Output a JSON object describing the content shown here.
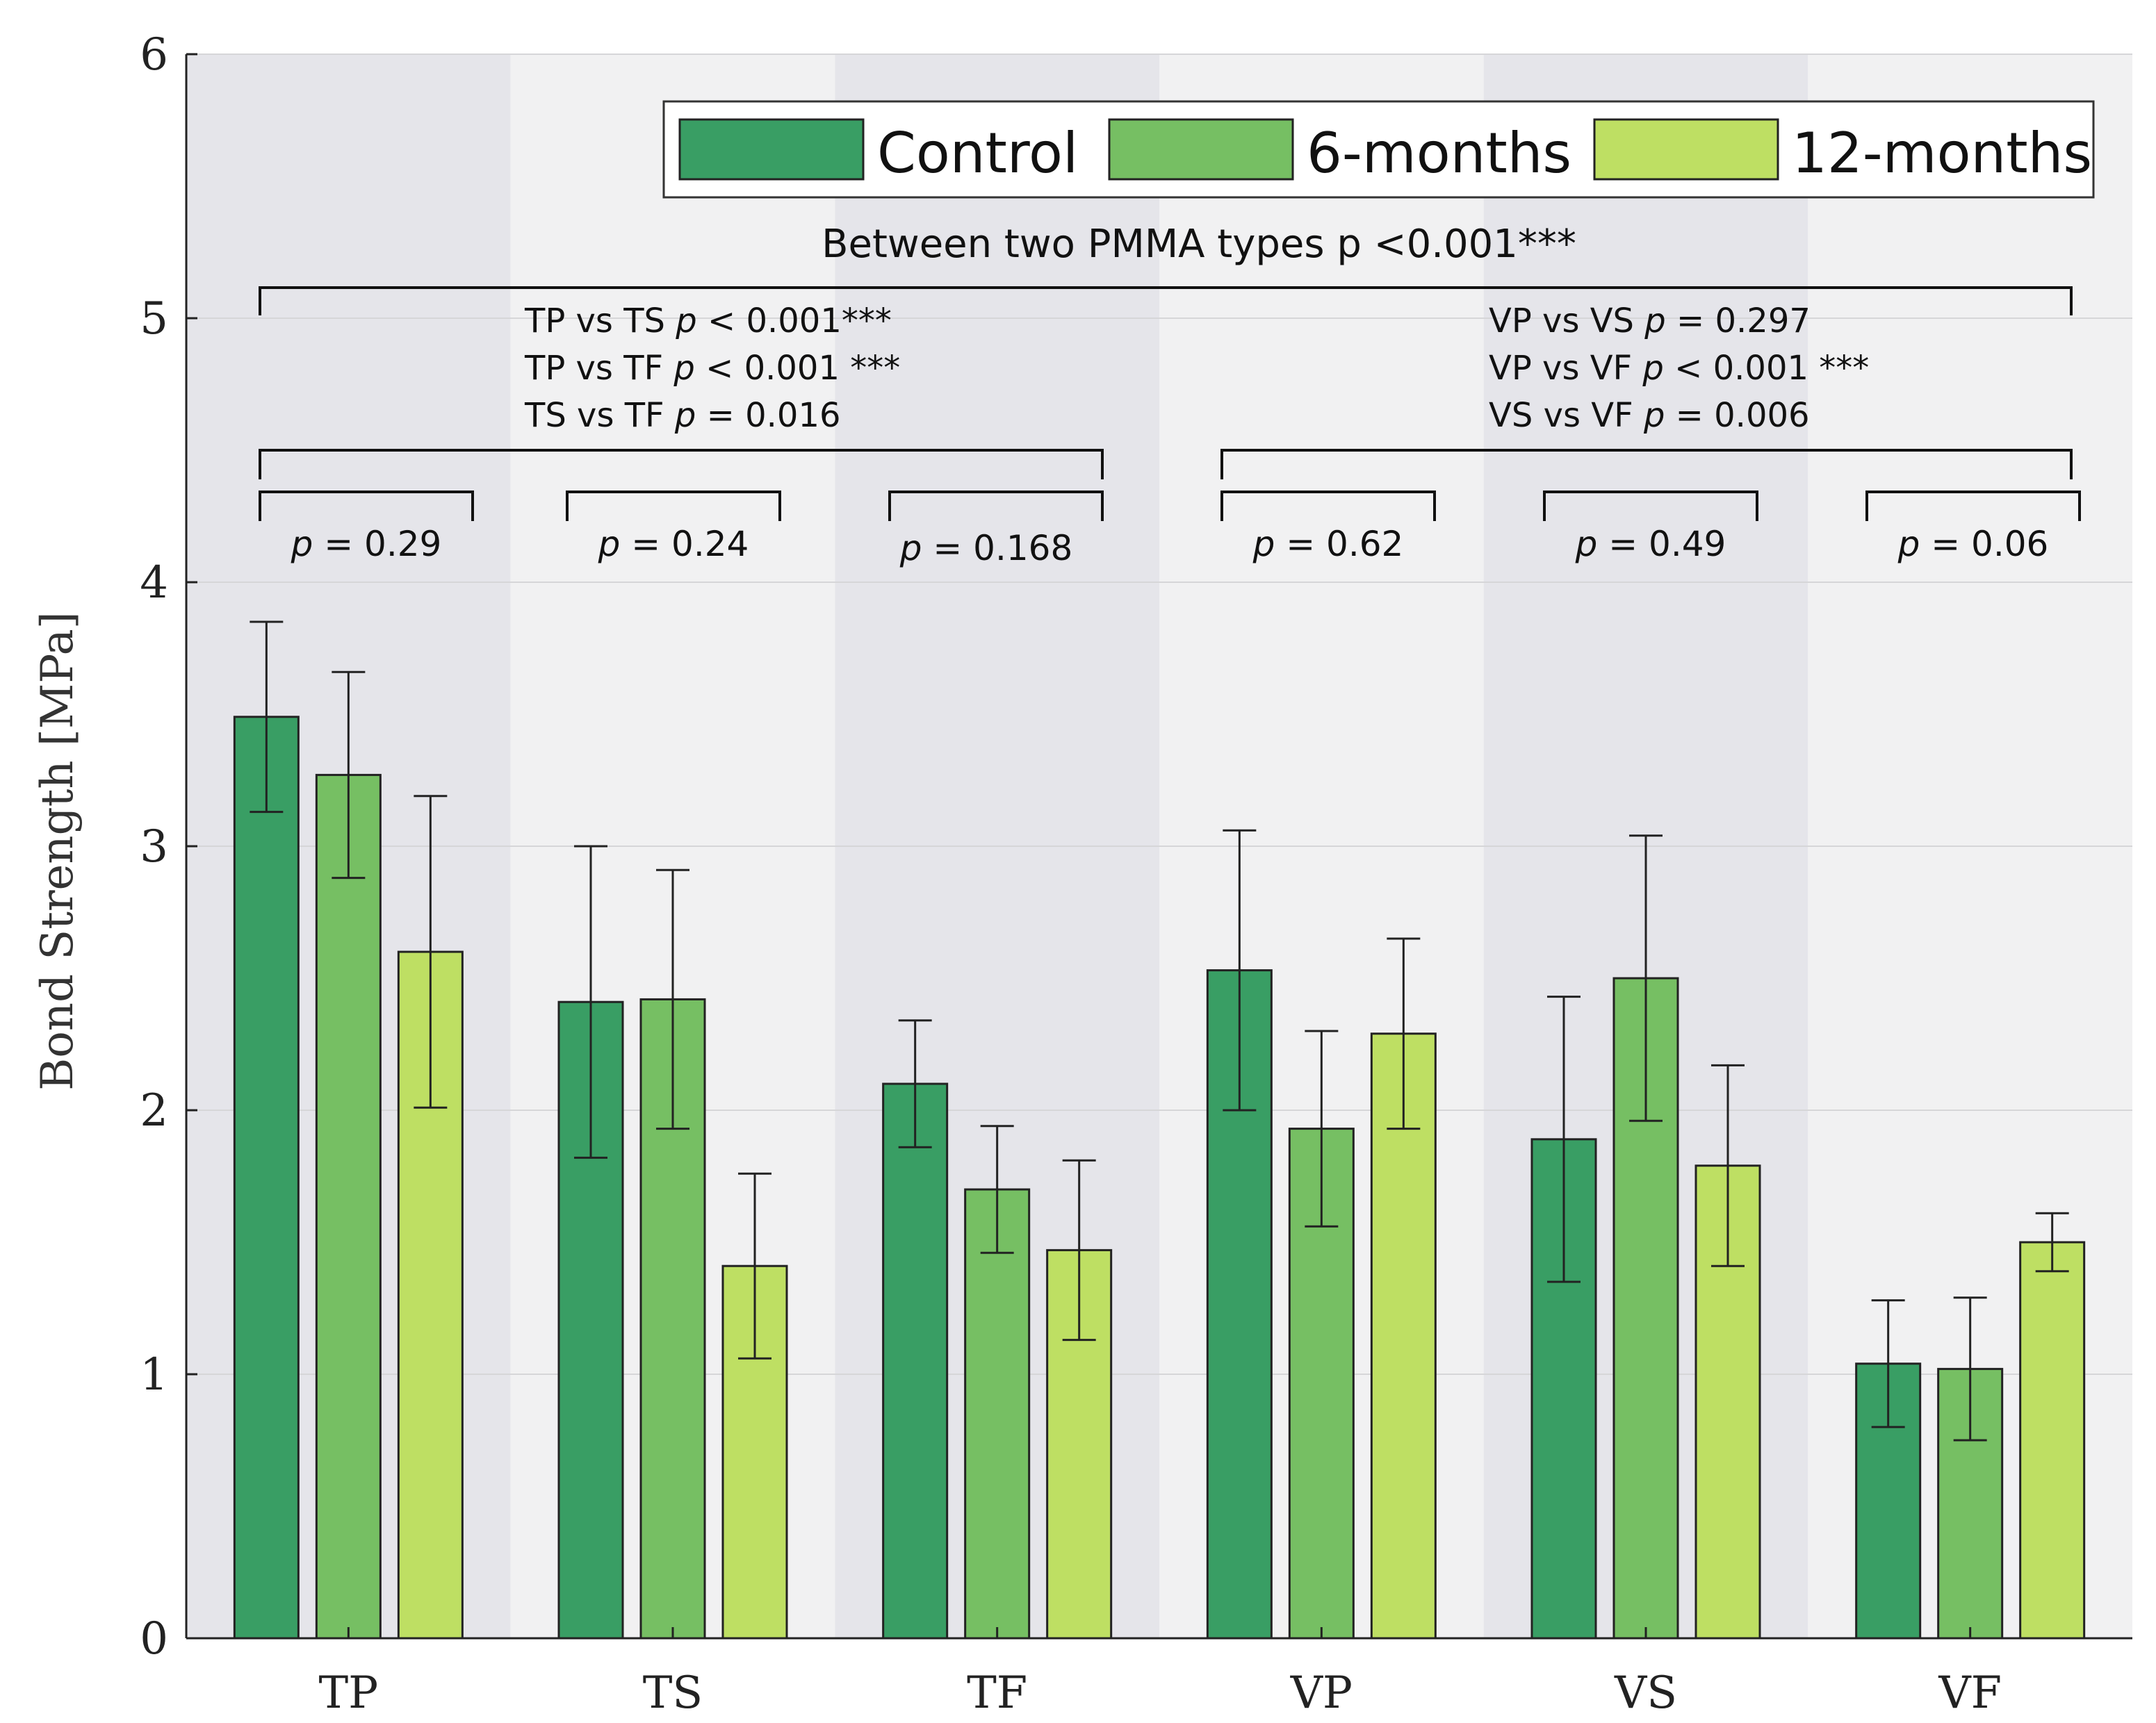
{
  "chart_data": {
    "type": "bar",
    "title": "",
    "xlabel": "",
    "ylabel": "Bond Strength [MPa]",
    "ylim": [
      0,
      6
    ],
    "yticks": [
      "0",
      "1",
      "2",
      "3",
      "4",
      "5",
      "6"
    ],
    "grid": true,
    "legend_position": "top-right",
    "categories": [
      "TP",
      "TS",
      "TF",
      "VP",
      "VS",
      "VF"
    ],
    "series": [
      {
        "name": "Control",
        "color": "#399e64",
        "values": [
          3.49,
          2.41,
          2.1,
          2.53,
          1.89,
          1.04
        ],
        "errors": [
          0.36,
          0.59,
          0.24,
          0.53,
          0.54,
          0.24
        ]
      },
      {
        "name": "6-months",
        "color": "#76bf63",
        "values": [
          3.27,
          2.42,
          1.7,
          1.93,
          2.5,
          1.02
        ],
        "errors": [
          0.39,
          0.49,
          0.24,
          0.37,
          0.54,
          0.27
        ]
      },
      {
        "name": "12-months",
        "color": "#bedf63",
        "values": [
          2.6,
          1.41,
          1.47,
          2.29,
          1.79,
          1.5
        ],
        "errors": [
          0.59,
          0.35,
          0.34,
          0.36,
          0.38,
          0.11
        ]
      }
    ],
    "annotations": {
      "overall": {
        "text": "Between two PMMA types p <0.001***"
      },
      "left_group": [
        {
          "a": "TP vs TS ",
          "p": "p",
          "b": " < 0.001***"
        },
        {
          "a": "TP vs TF ",
          "p": "p",
          "b": " < 0.001 ***"
        },
        {
          "a": "TS vs TF ",
          "p": "p",
          "b": " = 0.016"
        }
      ],
      "right_group": [
        {
          "a": "VP vs VS ",
          "p": "p",
          "b": " = 0.297"
        },
        {
          "a": "VP vs VF ",
          "p": "p",
          "b": " < 0.001 ***"
        },
        {
          "a": "VS vs VF ",
          "p": "p",
          "b": " = 0.006"
        }
      ],
      "category_pvalues": [
        {
          "p": "p",
          "v": " = 0.29"
        },
        {
          "p": "p",
          "v": " = 0.24"
        },
        {
          "p": "p",
          "v": " = 0.168"
        },
        {
          "p": "p",
          "v": " = 0.62"
        },
        {
          "p": "p",
          "v": " = 0.49"
        },
        {
          "p": "p",
          "v": " = 0.06"
        }
      ]
    }
  }
}
